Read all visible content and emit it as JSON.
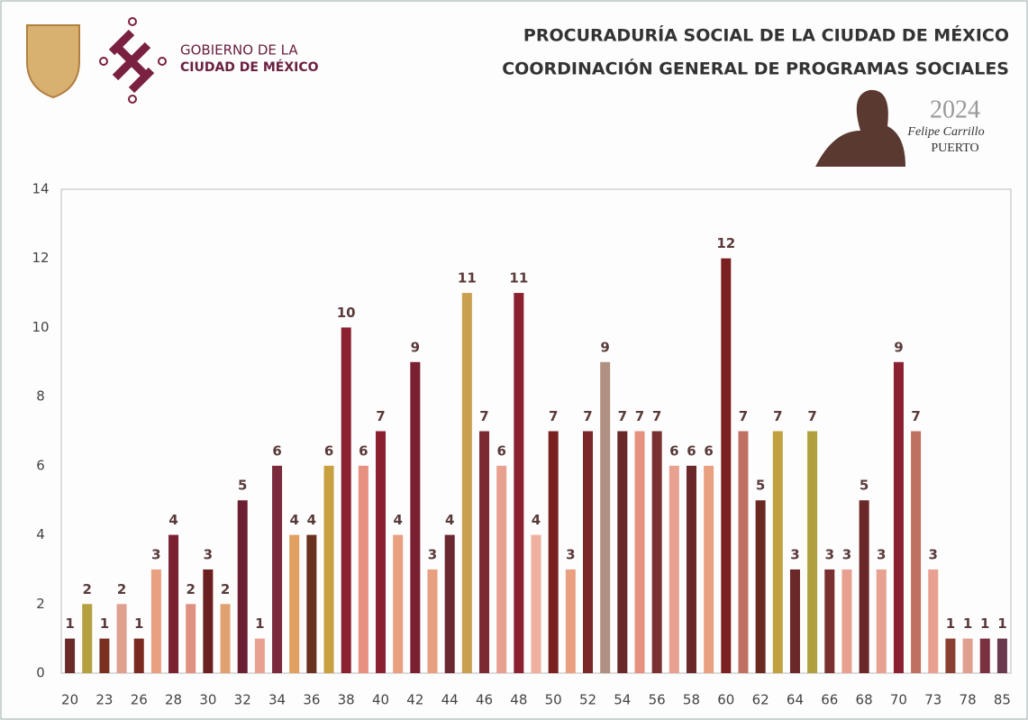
{
  "header": {
    "gov_line1": "GOBIERNO DE LA",
    "gov_line2": "CIUDAD DE MÉXICO",
    "title_line1": "PROCURADURÍA SOCIAL DE LA CIUDAD DE MÉXICO",
    "title_line2": "COORDINACIÓN GENERAL DE PROGRAMAS SOCIALES",
    "year": "2024",
    "year_name1": "Felipe Carrillo",
    "year_name2": "PUERTO"
  },
  "chart_data": {
    "type": "bar",
    "categories": [
      "20",
      null,
      "23",
      null,
      "26",
      null,
      "28",
      null,
      "30",
      null,
      "32",
      null,
      "34",
      null,
      "36",
      null,
      "38",
      null,
      "40",
      null,
      "42",
      null,
      "44",
      null,
      "46",
      null,
      "48",
      null,
      "50",
      null,
      "52",
      null,
      "54",
      null,
      "56",
      null,
      "58",
      null,
      "60",
      null,
      "62",
      null,
      "64",
      null,
      "66",
      null,
      "68",
      null,
      "70",
      null,
      "73",
      null,
      "78",
      null,
      "85"
    ],
    "values": [
      1,
      2,
      1,
      2,
      1,
      3,
      4,
      2,
      3,
      2,
      5,
      1,
      6,
      4,
      4,
      6,
      10,
      6,
      7,
      4,
      9,
      3,
      4,
      11,
      7,
      6,
      11,
      4,
      7,
      3,
      7,
      9,
      7,
      7,
      7,
      6,
      6,
      6,
      12,
      7,
      5,
      7,
      3,
      7,
      3,
      3,
      5,
      3,
      9,
      7,
      3,
      1,
      1,
      1,
      1
    ],
    "colors": [
      "#6b2a2a",
      "#b5a040",
      "#7a3020",
      "#e0a090",
      "#7a2a20",
      "#e8a080",
      "#7a2030",
      "#e09080",
      "#6a2020",
      "#e0a070",
      "#6a2030",
      "#e8a090",
      "#7a2a3a",
      "#e0a060",
      "#6a3020",
      "#c8a040",
      "#8a2030",
      "#e89080",
      "#8a2030",
      "#e8a080",
      "#7a2030",
      "#e8a080",
      "#6a2830",
      "#c8a050",
      "#7a2a30",
      "#e8a090",
      "#8a2030",
      "#f0b0a0",
      "#7a2020",
      "#e8a080",
      "#7a2828",
      "#b09080",
      "#6a2828",
      "#e89080",
      "#7a3030",
      "#e8a090",
      "#6a2828",
      "#e8a080",
      "#7a2020",
      "#c07060",
      "#6a2820",
      "#c0a040",
      "#6a2828",
      "#b0a040",
      "#7a3030",
      "#e8a090",
      "#6a2828",
      "#e8a090",
      "#8a2030",
      "#c07060",
      "#e8a090",
      "#8a4030",
      "#e0a090",
      "#7a3040",
      "#6a3a50"
    ],
    "ylim": [
      0,
      14
    ],
    "yticks": [
      0,
      2,
      4,
      6,
      8,
      10,
      12,
      14
    ],
    "grid": false
  }
}
